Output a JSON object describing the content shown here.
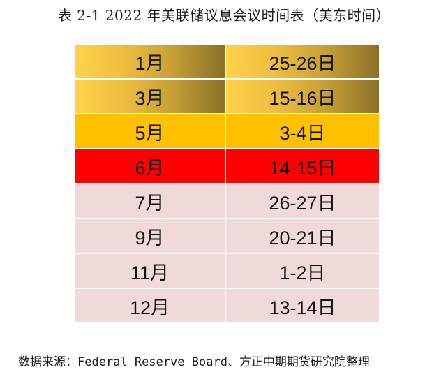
{
  "title": "表 2-1 2022 年美联储议息会议时间表（美东时间）",
  "rows": [
    {
      "month": "1月",
      "date": "25-26日",
      "style": "gold"
    },
    {
      "month": "3月",
      "date": "15-16日",
      "style": "gold"
    },
    {
      "month": "5月",
      "date": "3-4日",
      "style": "amber"
    },
    {
      "month": "6月",
      "date": "14-15日",
      "style": "red"
    },
    {
      "month": "7月",
      "date": "26-27日",
      "style": "pink"
    },
    {
      "month": "9月",
      "date": "20-21日",
      "style": "pink"
    },
    {
      "month": "11月",
      "date": "1-2日",
      "style": "pink"
    },
    {
      "month": "12月",
      "date": "13-14日",
      "style": "pink"
    }
  ],
  "colors": {
    "gold_start": "#ffd24a",
    "gold_end": "#8a7028",
    "amber": "#ffc000",
    "red": "#ff0000",
    "pink": "#efd9d9"
  },
  "source": "数据来源：Federal Reserve Board、方正中期期货研究院整理"
}
